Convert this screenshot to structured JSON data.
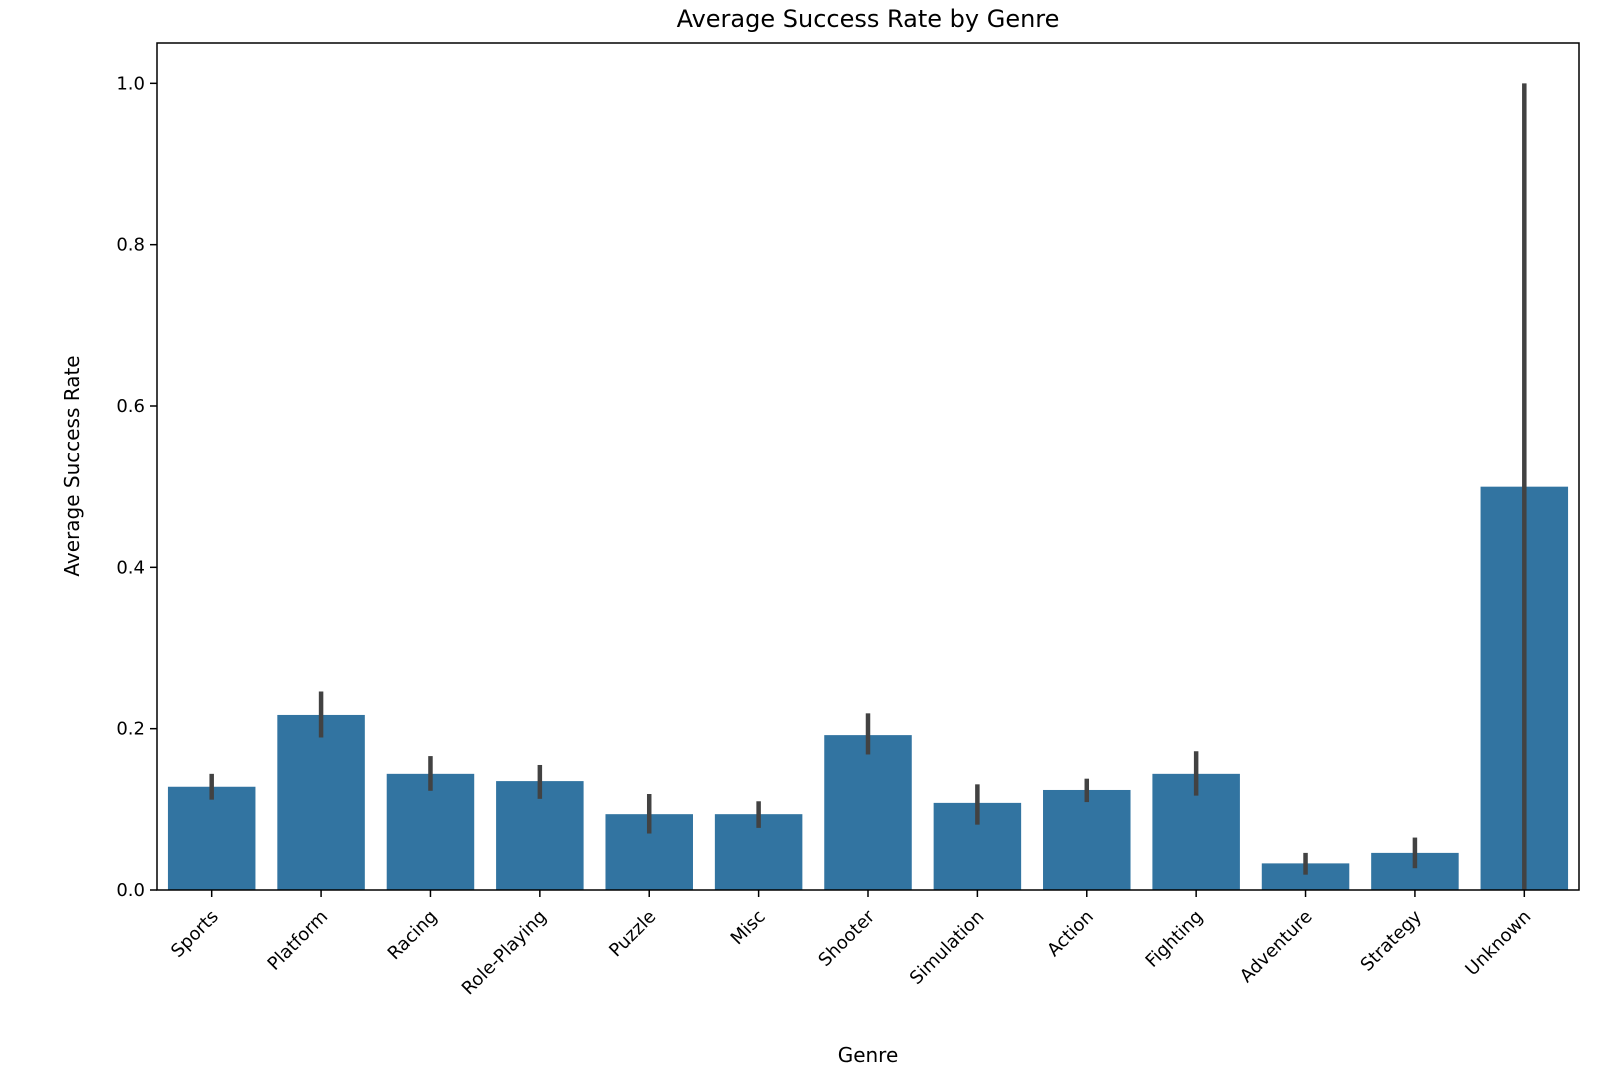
{
  "chart_data": {
    "type": "bar",
    "title": "Average Success Rate by Genre",
    "xlabel": "Genre",
    "ylabel": "Average Success Rate",
    "categories": [
      "Sports",
      "Platform",
      "Racing",
      "Role-Playing",
      "Puzzle",
      "Misc",
      "Shooter",
      "Simulation",
      "Action",
      "Fighting",
      "Adventure",
      "Strategy",
      "Unknown"
    ],
    "values": [
      0.128,
      0.217,
      0.144,
      0.135,
      0.094,
      0.094,
      0.192,
      0.108,
      0.124,
      0.144,
      0.033,
      0.046,
      0.5
    ],
    "error_low": [
      0.112,
      0.189,
      0.123,
      0.113,
      0.07,
      0.077,
      0.168,
      0.081,
      0.109,
      0.117,
      0.019,
      0.027,
      0.0
    ],
    "error_high": [
      0.144,
      0.246,
      0.166,
      0.155,
      0.119,
      0.11,
      0.219,
      0.131,
      0.138,
      0.172,
      0.046,
      0.065,
      1.0
    ],
    "ylim": [
      0,
      1.05
    ],
    "yticks": [
      0.0,
      0.2,
      0.4,
      0.6,
      0.8,
      1.0
    ],
    "ytick_labels": [
      "0.0",
      "0.2",
      "0.4",
      "0.6",
      "0.8",
      "1.0"
    ],
    "grid": false,
    "bar_color": "#3274a1",
    "error_color": "#424242"
  }
}
